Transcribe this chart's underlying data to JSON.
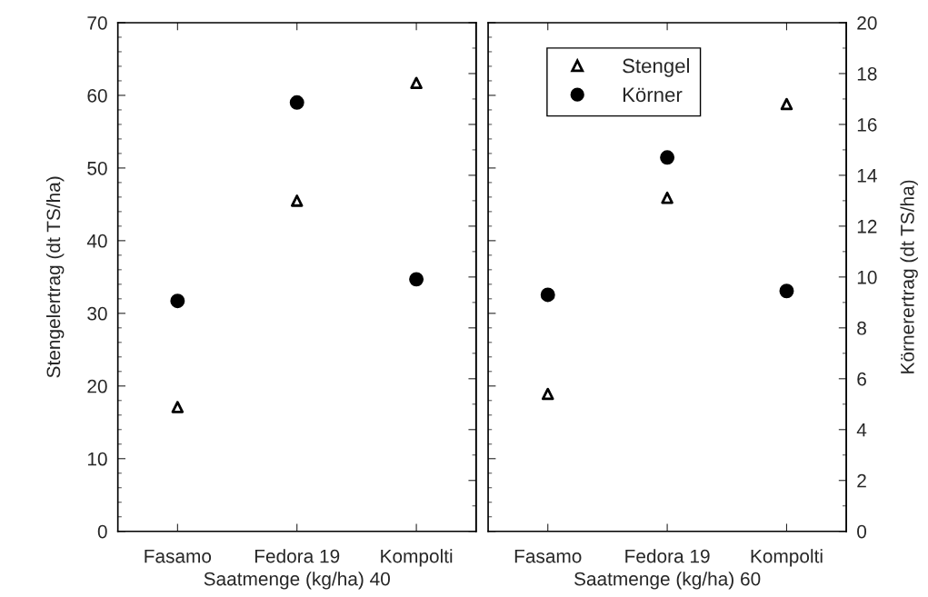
{
  "chart_data": [
    {
      "type": "scatter",
      "categories": [
        "Fasamo",
        "Fedora 19",
        "Kompolti"
      ],
      "xlabel": "Saatmenge (kg/ha) 40",
      "ylabel": "Stengelertrag (dt TS/ha)",
      "ylim": [
        0,
        70
      ],
      "yticks": [
        0,
        10,
        20,
        30,
        40,
        50,
        60,
        70
      ],
      "y2lim": [
        0,
        20
      ],
      "grid": false,
      "legend": "right",
      "series": [
        {
          "name": "Stengel",
          "color": "#000000",
          "marker": "triangle",
          "values": [
            17.1,
            45.5,
            61.7
          ]
        },
        {
          "name": "Körner",
          "color": "#000000",
          "marker": "circle",
          "axis": "y2",
          "values": [
            9.06,
            16.86,
            9.91
          ]
        }
      ]
    },
    {
      "type": "scatter",
      "categories": [
        "Fasamo",
        "Fedora 19",
        "Kompolti"
      ],
      "xlabel": "Saatmenge (kg/ha) 60",
      "y2label": "Körnerertrag (dt TS/ha)",
      "ylim": [
        0,
        70
      ],
      "y2lim": [
        0,
        20
      ],
      "y2ticks": [
        0,
        2,
        4,
        6,
        8,
        10,
        12,
        14,
        16,
        18,
        20
      ],
      "grid": false,
      "legend": false,
      "series": [
        {
          "color": "#000000",
          "marker": "triangle",
          "values": [
            18.9,
            45.9,
            58.8
          ]
        },
        {
          "color": "#000000",
          "marker": "circle",
          "axis": "y2",
          "values": [
            9.3,
            14.7,
            9.45
          ]
        }
      ]
    }
  ]
}
